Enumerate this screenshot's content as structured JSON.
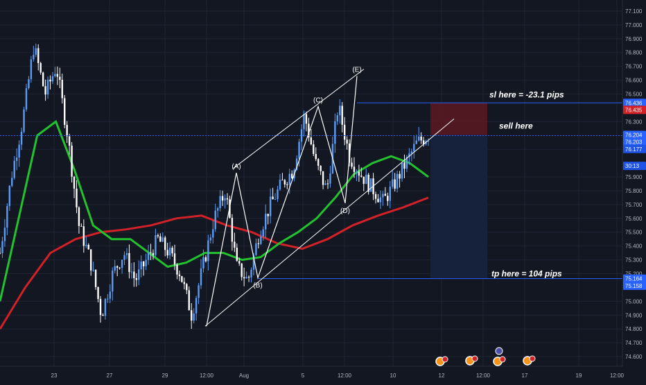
{
  "chart_data": {
    "type": "line",
    "symbol": "",
    "ylim": [
      74.55,
      77.15
    ],
    "y_ticks": [
      77.1,
      77.0,
      76.9,
      76.8,
      76.7,
      76.6,
      76.5,
      76.3,
      76.1,
      75.9,
      75.8,
      75.7,
      75.6,
      75.5,
      75.4,
      75.3,
      75.2,
      75.0,
      74.9,
      74.8,
      74.7,
      74.6
    ],
    "x_ticks": [
      "23",
      "27",
      "29",
      "12:00",
      "Aug",
      "5",
      "12:00",
      "10",
      "12",
      "12:00",
      "17",
      "19",
      "12:00"
    ],
    "price_series": {
      "name": "",
      "values": [
        75.35,
        75.9,
        76.3,
        76.85,
        76.5,
        76.7,
        76.2,
        75.55,
        75.3,
        74.9,
        75.2,
        75.35,
        75.15,
        75.3,
        75.45,
        75.35,
        75.2,
        74.9,
        75.25,
        75.6,
        75.8,
        75.25,
        75.15,
        75.5,
        75.7,
        75.85,
        75.95,
        76.35,
        76.0,
        75.8,
        76.42,
        76.05,
        75.92,
        75.82,
        75.72,
        75.85,
        76.0,
        76.15,
        76.2
      ]
    },
    "fast_ma": {
      "name": "",
      "color": "#22c32e",
      "values": [
        75.0,
        75.6,
        76.2,
        76.3,
        75.95,
        75.55,
        75.45,
        75.45,
        75.35,
        75.25,
        75.28,
        75.35,
        75.35,
        75.3,
        75.32,
        75.42,
        75.5,
        75.6,
        75.75,
        75.92,
        76.0,
        76.05,
        76.0,
        75.9
      ]
    },
    "slow_ma": {
      "name": "",
      "color": "#d32128",
      "values": [
        74.8,
        75.1,
        75.35,
        75.45,
        75.5,
        75.52,
        75.55,
        75.6,
        75.62,
        75.55,
        75.5,
        75.42,
        75.38,
        75.45,
        75.55,
        75.62,
        75.68,
        75.75
      ]
    },
    "wave_points": [
      {
        "label": "(A)",
        "price": 75.93
      },
      {
        "label": "(B)",
        "price": 75.17
      },
      {
        "label": "(C)",
        "price": 76.41
      },
      {
        "label": "(D)",
        "price": 75.71
      },
      {
        "label": "(E)",
        "price": 76.63
      }
    ],
    "levels": [
      {
        "text": "sl here = -23.1 pips",
        "price": 76.436
      },
      {
        "text": "sell here",
        "price": 76.204
      },
      {
        "text": "tp here = 104 pips",
        "price": 75.164
      }
    ],
    "price_tags": [
      {
        "text": "76.436",
        "price": 76.436,
        "bg": "#2962ff",
        "fg": "#ffffff"
      },
      {
        "text": "76.435",
        "price": 76.385,
        "bg": "#d32128",
        "fg": "#ffffff"
      },
      {
        "text": "76.204",
        "price": 76.204,
        "bg": "#2962ff",
        "fg": "#ffffff"
      },
      {
        "text": "76.203",
        "price": 76.153,
        "bg": "#2962ff",
        "fg": "#ffffff"
      },
      {
        "text": "76.177",
        "price": 76.102,
        "bg": "#1e53e5",
        "fg": "#ffffff"
      },
      {
        "text": "30:13",
        "price": 75.98,
        "bg": "#1e53e5",
        "fg": "#ffffff"
      },
      {
        "text": "75.164",
        "price": 75.164,
        "bg": "#2962ff",
        "fg": "#ffffff"
      },
      {
        "text": "75.158",
        "price": 75.113,
        "bg": "#2962ff",
        "fg": "#ffffff"
      }
    ],
    "grid": true,
    "colors": {
      "background": "#131722",
      "up_candle": "#5b9cf6",
      "down_candle": "#ffffff",
      "level_line": "#2962ff",
      "stop_zone": "#5c1a22",
      "target_zone": "#16233d",
      "trendline": "#ffffff"
    }
  }
}
